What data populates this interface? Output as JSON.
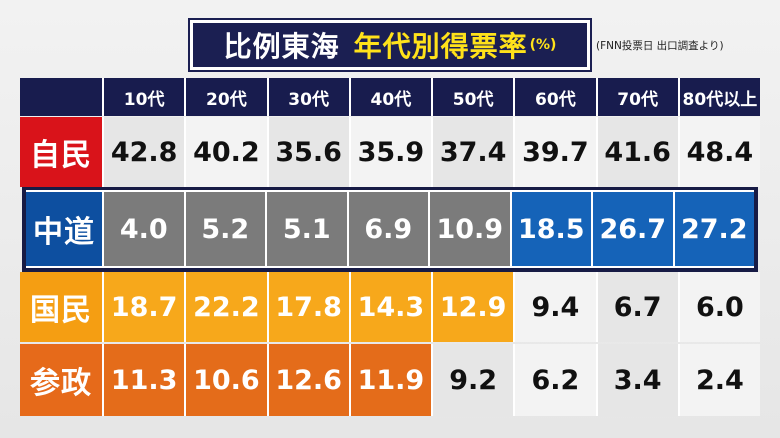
{
  "title": {
    "main": "比例東海",
    "accent": "年代別得票率",
    "unit": "(%)"
  },
  "source": "(FNN投票日 出口調査より)",
  "colors": {
    "header_bg": "#181c4e",
    "ldp_label": "#d9131a",
    "chudo_label": "#0d4fa0",
    "kokumin_label": "#f59e12",
    "sansei_label": "#e66a1a",
    "gray_cell": "#7b7b7b",
    "blue_cell": "#1563b8",
    "light_orange_cell": "#f7a81b",
    "dark_orange_cell": "#e46c1a",
    "plain_cell": "#e6e6e6",
    "plain_cell_alt": "#f3f3f3"
  },
  "chart_data": {
    "type": "table",
    "categories": [
      "10代",
      "20代",
      "30代",
      "40代",
      "50代",
      "60代",
      "70代",
      "80代以上"
    ],
    "series": [
      {
        "name": "自民",
        "values": [
          42.8,
          40.2,
          35.6,
          35.9,
          37.4,
          39.7,
          41.6,
          48.4
        ]
      },
      {
        "name": "中道",
        "values": [
          4.0,
          5.2,
          5.1,
          6.9,
          10.9,
          18.5,
          26.7,
          27.2
        ]
      },
      {
        "name": "国民",
        "values": [
          18.7,
          22.2,
          17.8,
          14.3,
          12.9,
          9.4,
          6.7,
          6.0
        ]
      },
      {
        "name": "参政",
        "values": [
          11.3,
          10.6,
          12.6,
          11.9,
          9.2,
          6.2,
          3.4,
          2.4
        ]
      }
    ]
  }
}
